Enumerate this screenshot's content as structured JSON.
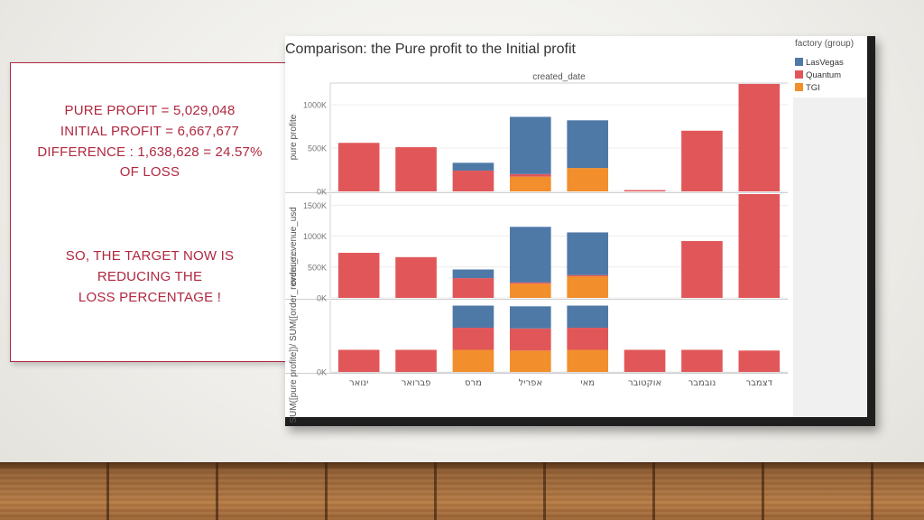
{
  "slide_text": {
    "pure_profit": "PURE PROFIT = 5,029,048",
    "initial_profit": "INITIAL PROFIT = 6,667,677",
    "difference": "DIFFERENCE : 1,638,628 = 24.57%",
    "of_loss": "OF LOSS",
    "target_line1": "SO, THE TARGET NOW IS",
    "target_line2": "REDUCING THE",
    "target_line3": "LOSS PERCENTAGE !"
  },
  "legend": {
    "title": "factory (group)",
    "items": [
      {
        "label": "LasVegas",
        "color": "#4e79a7"
      },
      {
        "label": "Quantum",
        "color": "#e15759"
      },
      {
        "label": "TGI",
        "color": "#f28e2b"
      }
    ]
  },
  "chart_data": {
    "type": "bar",
    "stacked": true,
    "title": "Comparison: the Pure profit to the Initial profit",
    "column_header": "created_date",
    "categories": [
      "ינואר",
      "פברואר",
      "מרס",
      "אפריל",
      "מאי",
      "אוקטובר",
      "נובמבר",
      "דצמבר"
    ],
    "colors": {
      "LasVegas": "#4e79a7",
      "Quantum": "#e15759",
      "TGI": "#f28e2b"
    },
    "panels": [
      {
        "ylabel": "pure profite",
        "ylim": [
          0,
          1250000
        ],
        "ticks": [
          {
            "value": 0,
            "label": "0K"
          },
          {
            "value": 500000,
            "label": "500K"
          },
          {
            "value": 1000000,
            "label": "1000K"
          }
        ],
        "series": [
          {
            "name": "TGI",
            "values": [
              0,
              0,
              0,
              170000,
              270000,
              0,
              0,
              0
            ]
          },
          {
            "name": "Quantum",
            "values": [
              560000,
              510000,
              240000,
              30000,
              0,
              15000,
              700000,
              1240000
            ]
          },
          {
            "name": "LasVegas",
            "values": [
              0,
              0,
              90000,
              660000,
              550000,
              0,
              0,
              0
            ]
          }
        ]
      },
      {
        "ylabel": "order_revenue_usd",
        "ylim": [
          0,
          1680000
        ],
        "ticks": [
          {
            "value": 0,
            "label": "0K"
          },
          {
            "value": 500000,
            "label": "500K"
          },
          {
            "value": 1000000,
            "label": "1000K"
          },
          {
            "value": 1500000,
            "label": "1500K"
          }
        ],
        "series": [
          {
            "name": "TGI",
            "values": [
              0,
              0,
              0,
              230000,
              350000,
              0,
              0,
              0
            ]
          },
          {
            "name": "Quantum",
            "values": [
              730000,
              660000,
              320000,
              20000,
              20000,
              0,
              920000,
              1680000
            ]
          },
          {
            "name": "LasVegas",
            "values": [
              0,
              0,
              140000,
              900000,
              690000,
              0,
              0,
              0
            ]
          }
        ]
      },
      {
        "ylabel": "SUM([pure profite])/ SUM([order_revenue...",
        "ylim": [
          0,
          1.0
        ],
        "ticks": [
          {
            "value": 0,
            "label": "0K"
          }
        ],
        "series": [
          {
            "name": "TGI",
            "values": [
              0,
              0,
              0.31,
              0.3,
              0.31,
              0,
              0,
              0
            ]
          },
          {
            "name": "Quantum",
            "values": [
              0.31,
              0.31,
              0.31,
              0.31,
              0.31,
              0.31,
              0.31,
              0.3
            ]
          },
          {
            "name": "LasVegas",
            "values": [
              0,
              0,
              0.31,
              0.31,
              0.31,
              0,
              0,
              0
            ]
          }
        ]
      }
    ]
  }
}
